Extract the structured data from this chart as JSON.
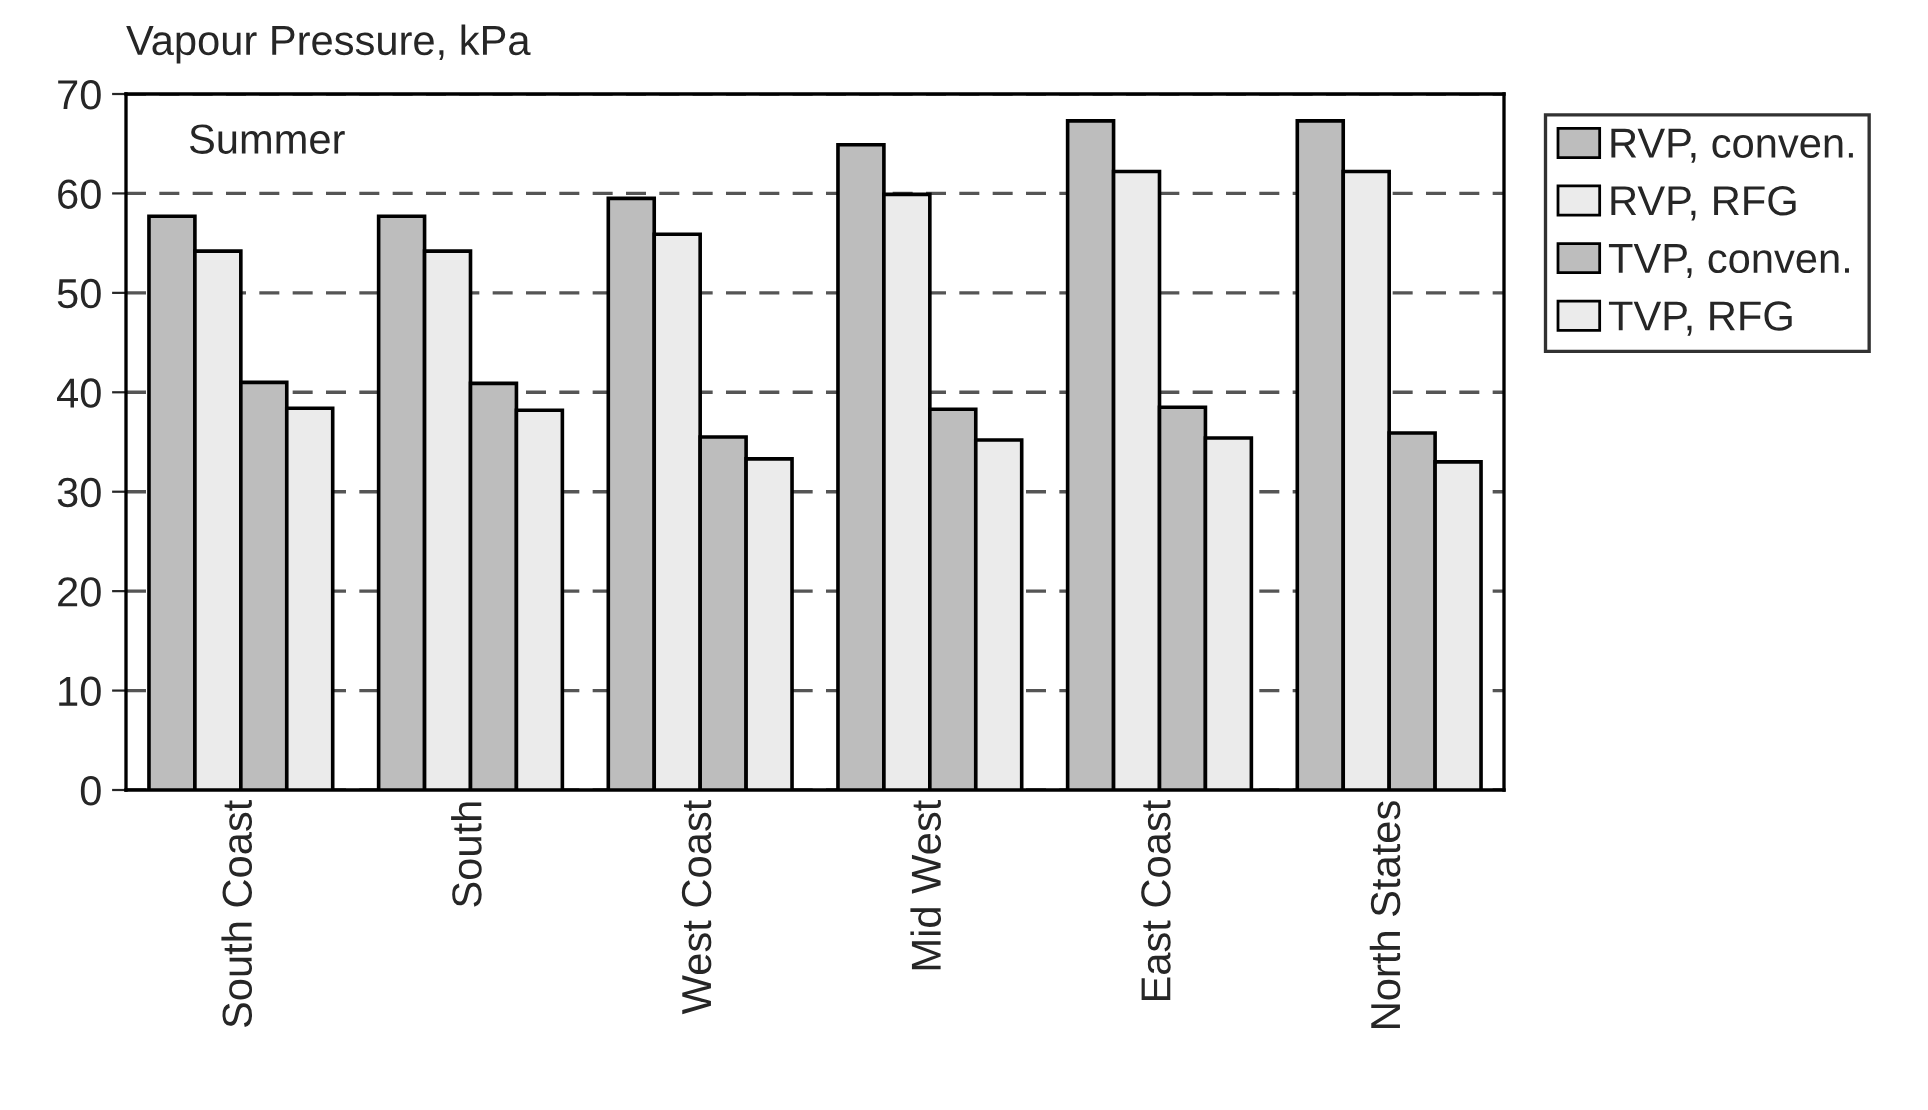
{
  "chart_data": {
    "type": "bar",
    "ylabel": "Vapour Pressure, kPa",
    "annotations": [
      "Summer"
    ],
    "categories": [
      "South Coast",
      "South",
      "West Coast",
      "Mid West",
      "East Coast",
      "North States"
    ],
    "series": [
      {
        "name": "RVP, conven.",
        "color": "#bdbdbd",
        "values": [
          57.7,
          57.7,
          59.5,
          64.9,
          67.3,
          67.3
        ]
      },
      {
        "name": "RVP, RFG",
        "color": "#ebebeb",
        "values": [
          54.2,
          54.2,
          55.9,
          59.9,
          62.2,
          62.2
        ]
      },
      {
        "name": "TVP, conven.",
        "color": "#bdbdbd",
        "values": [
          41.0,
          40.9,
          35.5,
          38.3,
          38.5,
          35.9
        ]
      },
      {
        "name": "TVP, RFG",
        "color": "#ebebeb",
        "values": [
          38.4,
          38.2,
          33.3,
          35.2,
          35.4,
          33.0
        ]
      }
    ],
    "ylim": [
      0,
      70
    ],
    "yticks": [
      0,
      10,
      20,
      30,
      40,
      50,
      60,
      70
    ],
    "grid": "y",
    "legend": "right"
  }
}
